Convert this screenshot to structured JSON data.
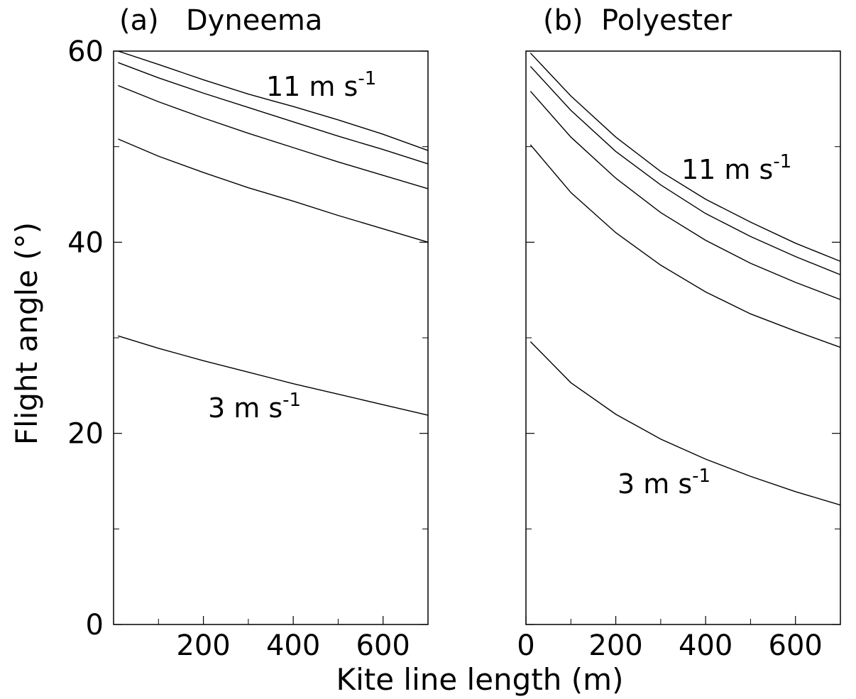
{
  "x_label": "Kite line length (m)",
  "y_label": "Flight angle (°)",
  "chart_data": [
    {
      "type": "line",
      "title": "(a)   Dyneema",
      "x": [
        10,
        100,
        200,
        300,
        400,
        500,
        600,
        700
      ],
      "series": [
        {
          "color": "#000000",
          "values": [
            60.0,
            58.6,
            57.0,
            55.5,
            54.2,
            52.8,
            51.3,
            49.6
          ]
        },
        {
          "color": "#000000",
          "values": [
            58.8,
            57.2,
            55.6,
            54.1,
            52.6,
            51.1,
            49.7,
            48.2
          ]
        },
        {
          "color": "#000000",
          "values": [
            56.4,
            54.7,
            53.0,
            51.4,
            49.9,
            48.4,
            47.0,
            45.6
          ]
        },
        {
          "color": "#000000",
          "values": [
            50.8,
            49.0,
            47.3,
            45.7,
            44.3,
            42.8,
            41.4,
            40.0
          ]
        },
        {
          "color": "#000000",
          "values": [
            30.2,
            28.9,
            27.6,
            26.4,
            25.2,
            24.1,
            23.0,
            21.9
          ]
        }
      ],
      "annotations": [
        {
          "text": "11 m s",
          "sup": "-1"
        },
        {
          "text": "3 m s",
          "sup": "-1"
        }
      ],
      "xlim": [
        0,
        700
      ],
      "ylim": [
        0,
        60
      ],
      "xticks": [
        200,
        400,
        600
      ],
      "x_minor_ticks": [
        100,
        300,
        500,
        700
      ],
      "yticks": [
        0,
        20,
        40,
        60
      ],
      "y_minor_ticks": [
        10,
        30,
        50
      ],
      "ytick_labels": true
    },
    {
      "type": "line",
      "title": "(b)  Polyester",
      "x": [
        10,
        100,
        200,
        300,
        400,
        500,
        600,
        700
      ],
      "series": [
        {
          "color": "#000000",
          "values": [
            59.8,
            55.3,
            51.0,
            47.4,
            44.5,
            42.1,
            39.9,
            38.0
          ]
        },
        {
          "color": "#000000",
          "values": [
            58.4,
            53.8,
            49.5,
            46.0,
            43.0,
            40.6,
            38.5,
            36.6
          ]
        },
        {
          "color": "#000000",
          "values": [
            55.8,
            51.0,
            46.7,
            43.1,
            40.2,
            37.8,
            35.8,
            34.0
          ]
        },
        {
          "color": "#000000",
          "values": [
            50.2,
            45.2,
            41.0,
            37.6,
            34.8,
            32.5,
            30.7,
            29.0
          ]
        },
        {
          "color": "#000000",
          "values": [
            29.6,
            25.3,
            22.0,
            19.4,
            17.3,
            15.5,
            13.9,
            12.5
          ]
        }
      ],
      "annotations": [
        {
          "text": "11 m s",
          "sup": "-1"
        },
        {
          "text": "3 m s",
          "sup": "-1"
        }
      ],
      "xlim": [
        0,
        700
      ],
      "ylim": [
        0,
        60
      ],
      "xticks": [
        0,
        200,
        400,
        600
      ],
      "x_minor_ticks": [
        100,
        300,
        500,
        700
      ],
      "yticks": [
        0,
        20,
        40,
        60
      ],
      "y_minor_ticks": [
        10,
        30,
        50
      ],
      "ytick_labels": false
    }
  ]
}
